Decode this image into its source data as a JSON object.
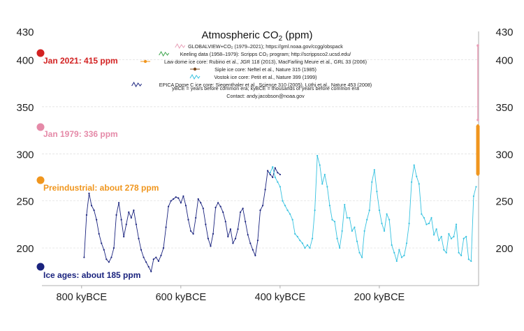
{
  "chart_data": {
    "type": "line",
    "title": "Atmospheric CO",
    "title_sub": "2",
    "title_unit": " (ppm)",
    "xlabel": "",
    "ylabel": "",
    "x_unit": "kyBCE",
    "xlim": [
      880,
      0
    ],
    "ylim": [
      160,
      430
    ],
    "y_ticks": [
      200,
      250,
      300,
      350,
      400,
      430
    ],
    "x_ticks": [
      {
        "value": 800,
        "label": "800 kyBCE"
      },
      {
        "value": 600,
        "label": "600 kyBCE"
      },
      {
        "value": 400,
        "label": "400 kyBCE"
      },
      {
        "value": 200,
        "label": "200 kyBCE"
      }
    ],
    "grid": true,
    "legend_position": "top-center",
    "legend": [
      {
        "text": "GLOBALVIEW+CO₂ (1979–2021); https://gml.noaa.gov/ccgg/obspack",
        "color": "#e8a0b8",
        "marker": "squiggle"
      },
      {
        "text": "Keeling data (1958–1979): Scripps CO₂ program; http://scrippsco2.ucsd.edu/",
        "color": "#3aa34a",
        "marker": "squiggle"
      },
      {
        "text": "Law dome ice core:  Rubino et al., JGR 118 (2013), MacFarling Meure et al., GRL 33 (2006)",
        "color": "#f0961e",
        "marker": "dot-line"
      },
      {
        "text": "Siple ice core:  Neftel et al., Nature 315 (1985)",
        "color": "#7a4a1e",
        "marker": "dot-line"
      },
      {
        "text": "Vostok ice core:  Petit et al., Nature 399 (1999)",
        "color": "#37c2e0",
        "marker": "squiggle"
      },
      {
        "text": "EPICA Dome C ice core:  Siegenthaler et al., Science 310 (2005), Lüthi et al., Nature 453 (2008)",
        "color": "#1a237e",
        "marker": "squiggle"
      }
    ],
    "notes": [
      "yBCE = years before common era; kyBCE = thousands of years before common era",
      "Contact: andy.jacobson@noaa.gov"
    ],
    "annotations": [
      {
        "text": "Jan 2021: 415 ppm",
        "value": 415,
        "color": "#d32222"
      },
      {
        "text": "Jan 1979: 336 ppm",
        "value": 336,
        "color": "#e58aa8"
      },
      {
        "text": "Preindustrial: about 278 ppm",
        "value": 278,
        "color": "#f0961e"
      },
      {
        "text": "Ice ages: about 185 ppm",
        "value": 185,
        "color": "#1a237e"
      }
    ],
    "series": [
      {
        "name": "EPICA Dome C ice core",
        "color": "#1a237e",
        "x": [
          795,
          790,
          785,
          780,
          775,
          770,
          765,
          760,
          755,
          750,
          745,
          740,
          735,
          730,
          725,
          720,
          715,
          710,
          705,
          700,
          695,
          690,
          685,
          680,
          675,
          670,
          665,
          660,
          655,
          650,
          645,
          640,
          635,
          630,
          625,
          620,
          615,
          610,
          605,
          600,
          595,
          590,
          585,
          580,
          575,
          570,
          565,
          560,
          555,
          550,
          545,
          540,
          535,
          530,
          525,
          520,
          515,
          510,
          505,
          500,
          495,
          490,
          485,
          480,
          475,
          470,
          465,
          460,
          455,
          450,
          445,
          440,
          435,
          430,
          425,
          420,
          415,
          410,
          405,
          400
        ],
        "y": [
          190,
          235,
          258,
          245,
          240,
          230,
          215,
          205,
          198,
          188,
          185,
          190,
          200,
          235,
          248,
          230,
          212,
          225,
          238,
          232,
          240,
          225,
          210,
          198,
          190,
          185,
          180,
          175,
          188,
          190,
          186,
          192,
          200,
          222,
          244,
          250,
          252,
          254,
          253,
          248,
          255,
          245,
          230,
          218,
          215,
          232,
          252,
          248,
          242,
          225,
          210,
          202,
          215,
          243,
          248,
          244,
          238,
          228,
          212,
          220,
          205,
          210,
          220,
          238,
          242,
          228,
          214,
          205,
          198,
          192,
          208,
          240,
          245,
          262,
          282,
          278,
          275,
          285,
          280,
          278
        ]
      },
      {
        "name": "Vostok ice core",
        "color": "#37c2e0",
        "x": [
          420,
          415,
          410,
          405,
          400,
          395,
          390,
          385,
          380,
          375,
          370,
          365,
          360,
          355,
          350,
          345,
          340,
          335,
          330,
          325,
          320,
          315,
          310,
          305,
          300,
          295,
          290,
          285,
          280,
          275,
          270,
          265,
          260,
          255,
          250,
          245,
          240,
          235,
          230,
          225,
          220,
          215,
          210,
          205,
          200,
          195,
          190,
          185,
          180,
          175,
          170,
          165,
          160,
          155,
          150,
          145,
          140,
          135,
          130,
          125,
          120,
          115,
          110,
          105,
          100,
          95,
          90,
          85,
          80,
          75,
          70,
          65,
          60,
          55,
          50,
          45,
          40,
          35,
          30,
          25,
          20,
          15,
          10,
          5
        ],
        "y": [
          280,
          286,
          275,
          270,
          265,
          250,
          245,
          240,
          236,
          230,
          215,
          212,
          208,
          205,
          200,
          203,
          200,
          210,
          240,
          298,
          288,
          268,
          278,
          265,
          245,
          230,
          228,
          210,
          200,
          218,
          246,
          232,
          232,
          218,
          222,
          207,
          195,
          190,
          218,
          230,
          240,
          270,
          283,
          260,
          240,
          226,
          218,
          236,
          230,
          203,
          195,
          186,
          198,
          190,
          192,
          205,
          226,
          270,
          288,
          276,
          268,
          236,
          232,
          225,
          226,
          232,
          214,
          220,
          208,
          212,
          198,
          195,
          215,
          210,
          212,
          225,
          195,
          192,
          210,
          212,
          188,
          186,
          255,
          265
        ]
      },
      {
        "name": "Law dome ice core",
        "color": "#f0961e",
        "x": [
          0,
          0,
          0,
          0
        ],
        "y": [
          278,
          290,
          310,
          330
        ]
      },
      {
        "name": "GLOBALVIEW+CO₂",
        "color": "#e8a0b8",
        "x": [
          0,
          0
        ],
        "y": [
          336,
          415
        ]
      }
    ]
  }
}
